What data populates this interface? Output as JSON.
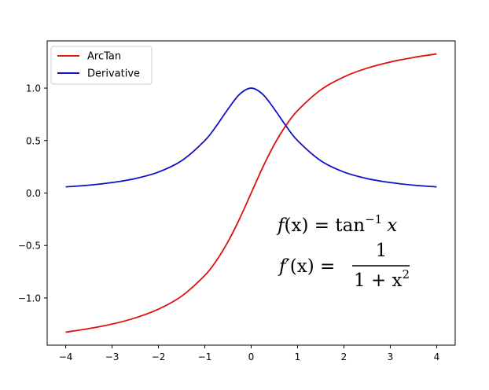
{
  "chart_data": {
    "type": "line",
    "title": "",
    "xlabel": "",
    "ylabel": "",
    "xlim": [
      -4.4,
      4.4
    ],
    "ylim": [
      -1.45,
      1.45
    ],
    "xticks": [
      -4,
      -3,
      -2,
      -1,
      0,
      1,
      2,
      3,
      4
    ],
    "yticks": [
      -1.0,
      -0.5,
      0.0,
      0.5,
      1.0
    ],
    "xtick_labels": [
      "−4",
      "−3",
      "−2",
      "−1",
      "0",
      "1",
      "2",
      "3",
      "4"
    ],
    "ytick_labels": [
      "−1.0",
      "−0.5",
      "0.0",
      "0.5",
      "1.0"
    ],
    "grid": false,
    "legend_position": "top-left",
    "x": [
      -4,
      -3.5,
      -3,
      -2.5,
      -2,
      -1.5,
      -1,
      -0.75,
      -0.5,
      -0.25,
      0,
      0.25,
      0.5,
      0.75,
      1,
      1.5,
      2,
      2.5,
      3,
      3.5,
      4
    ],
    "series": [
      {
        "name": "ArcTan",
        "color": "#dd1111",
        "values": [
          -1.326,
          -1.292,
          -1.249,
          -1.19,
          -1.107,
          -0.983,
          -0.785,
          -0.644,
          -0.464,
          -0.245,
          0.0,
          0.245,
          0.464,
          0.644,
          0.785,
          0.983,
          1.107,
          1.19,
          1.249,
          1.292,
          1.326
        ]
      },
      {
        "name": "Derivative",
        "color": "#1111cc",
        "values": [
          0.059,
          0.075,
          0.1,
          0.138,
          0.2,
          0.308,
          0.5,
          0.64,
          0.8,
          0.941,
          1.0,
          0.941,
          0.8,
          0.64,
          0.5,
          0.308,
          0.2,
          0.138,
          0.1,
          0.075,
          0.059
        ]
      }
    ],
    "annotations": {
      "line1": {
        "lhs": "f",
        "lhs_arg": "(x) = tan",
        "sup": "−1",
        "rhs": "x"
      },
      "line2": {
        "lhs": "f′",
        "lhs_arg": "(x) =",
        "numerator": "1",
        "denominator": "1 + x",
        "den_sup": "2"
      }
    }
  }
}
